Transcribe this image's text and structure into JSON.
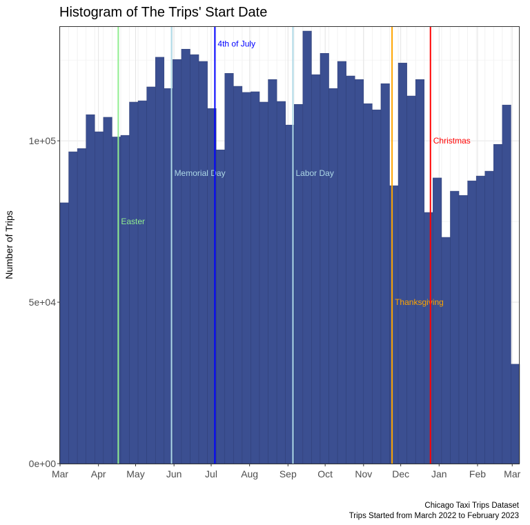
{
  "chart_data": {
    "type": "bar",
    "title": "Histogram of The Trips' Start Date",
    "xlabel": "",
    "ylabel": "Number of Trips",
    "caption": [
      "Chicago Taxi Trips Dataset",
      "Trips Started from March 2022 to February 2023"
    ],
    "bin_width_days": 7,
    "x_start_date": "2022-03-01",
    "ylim": [
      0,
      135500
    ],
    "y_ticks": [
      {
        "value": 0,
        "label": "0e+00"
      },
      {
        "value": 50000,
        "label": "5e+04"
      },
      {
        "value": 100000,
        "label": "1e+05"
      }
    ],
    "x_ticks": [
      {
        "day": 0,
        "label": "Mar"
      },
      {
        "day": 31,
        "label": "Apr"
      },
      {
        "day": 61,
        "label": "May"
      },
      {
        "day": 92,
        "label": "Jun"
      },
      {
        "day": 122,
        "label": "Jul"
      },
      {
        "day": 153,
        "label": "Aug"
      },
      {
        "day": 184,
        "label": "Sep"
      },
      {
        "day": 214,
        "label": "Oct"
      },
      {
        "day": 245,
        "label": "Nov"
      },
      {
        "day": 275,
        "label": "Dec"
      },
      {
        "day": 306,
        "label": "Jan"
      },
      {
        "day": 337,
        "label": "Feb"
      },
      {
        "day": 365,
        "label": "Mar"
      }
    ],
    "values": [
      80800,
      96600,
      97600,
      108100,
      102800,
      107300,
      101200,
      101700,
      112000,
      112400,
      116700,
      125900,
      116200,
      125200,
      128400,
      126700,
      124600,
      110000,
      97200,
      120900,
      116900,
      115000,
      115200,
      112000,
      119000,
      112200,
      104900,
      111300,
      134000,
      120500,
      127100,
      116200,
      124600,
      120100,
      119000,
      111500,
      109600,
      117700,
      86100,
      124100,
      113900,
      119000,
      77800,
      88500,
      70100,
      84400,
      83100,
      87600,
      89100,
      90600,
      98900,
      111100,
      30800
    ],
    "holidays": [
      {
        "name": "Easter",
        "day": 47,
        "label_y": 75000,
        "color": "#90EE90"
      },
      {
        "name": "Memorial Day",
        "day": 90,
        "label_y": 90000,
        "color": "#ADD8E6"
      },
      {
        "name": "4th of July",
        "day": 125,
        "label_y": 130000,
        "color": "#0000FF"
      },
      {
        "name": "Labor Day",
        "day": 188,
        "label_y": 90000,
        "color": "#ADD8E6"
      },
      {
        "name": "Thanksgiving",
        "day": 268,
        "label_y": 50000,
        "color": "#FFA500"
      },
      {
        "name": "Christmas",
        "day": 299,
        "label_y": 100000,
        "color": "#FF0000"
      }
    ],
    "bar_color": "#3B4F91",
    "bar_edge_color": "#2E3D75",
    "grid": true
  }
}
